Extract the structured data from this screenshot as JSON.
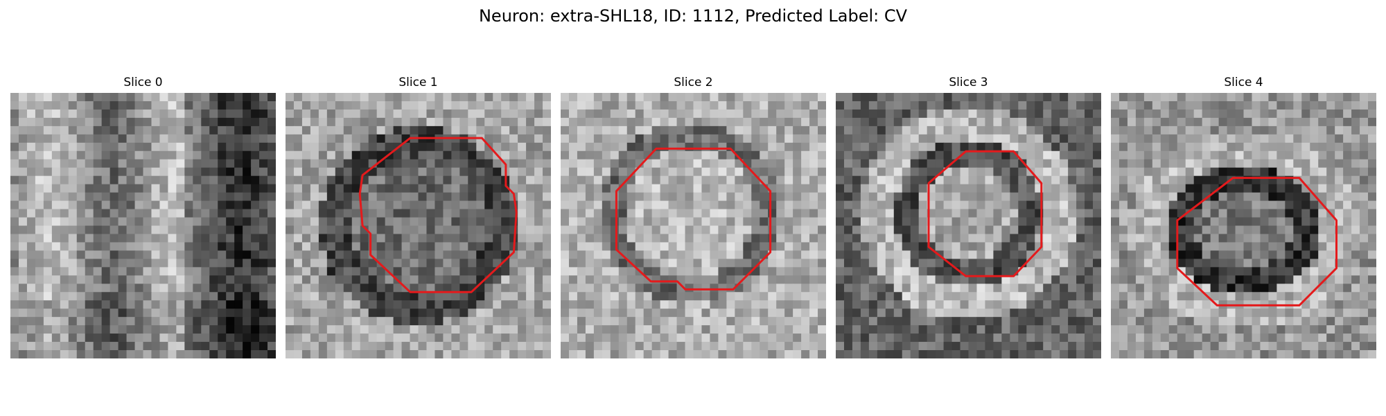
{
  "figure": {
    "title": "Neuron: extra-SHL18, ID: 1112, Predicted Label: CV"
  },
  "panels": [
    {
      "title": "Slice 0",
      "has_contour": false
    },
    {
      "title": "Slice 1",
      "has_contour": true
    },
    {
      "title": "Slice 2",
      "has_contour": true
    },
    {
      "title": "Slice 3",
      "has_contour": true
    },
    {
      "title": "Slice 4",
      "has_contour": true
    }
  ],
  "colors": {
    "contour": "#e41a1c",
    "background": "#ffffff"
  },
  "image": {
    "colormap": "grayscale",
    "grid": "32x32 pixel micrograph patches"
  }
}
